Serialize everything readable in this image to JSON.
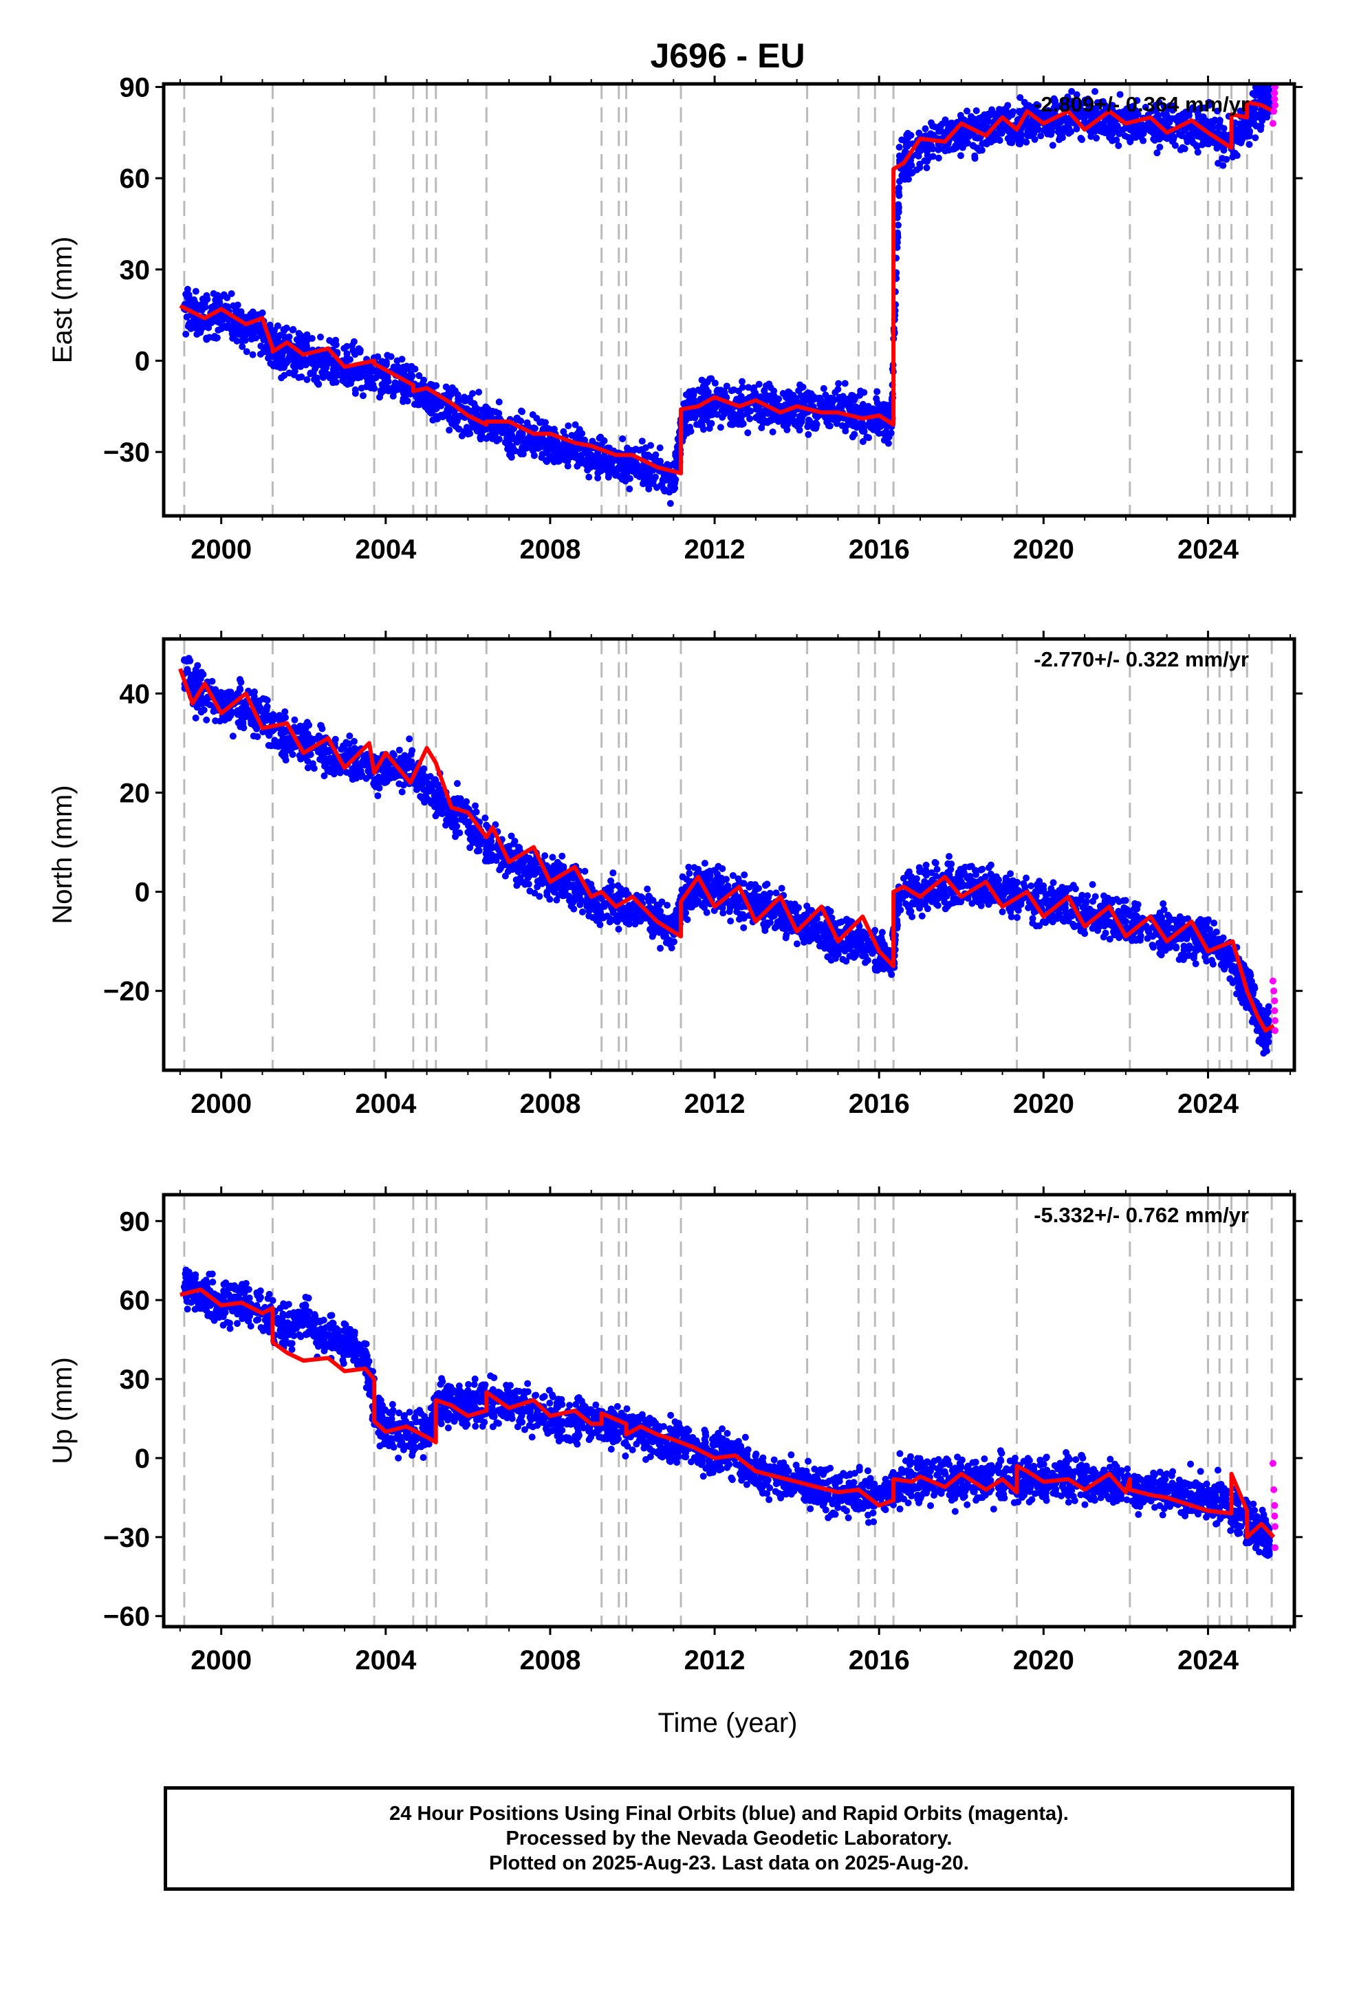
{
  "title": "J696 - EU",
  "time_axis": {
    "label": "Time (year)",
    "ticks": [
      2000,
      2004,
      2008,
      2012,
      2016,
      2020,
      2024
    ],
    "range": [
      1998.6,
      2026.1
    ]
  },
  "event_lines": [
    1999.1,
    2001.25,
    2003.72,
    2004.67,
    2005.0,
    2005.22,
    2006.45,
    2009.25,
    2009.67,
    2009.85,
    2011.18,
    2014.25,
    2015.5,
    2015.9,
    2016.35,
    2019.35,
    2022.1,
    2024.0,
    2024.28,
    2024.57,
    2024.95,
    2025.55
  ],
  "colors": {
    "final_orbits": "#0000ff",
    "rapid_orbits": "#ff00ff",
    "model": "#ff0000",
    "event_lines": "#bbbbbb",
    "frame": "#000000"
  },
  "chart_data": [
    {
      "type": "scatter",
      "panel": "east",
      "ylabel": "East (mm)",
      "ylim": [
        -51,
        91
      ],
      "yticks": [
        90,
        60,
        30,
        0,
        -30
      ],
      "rate": "-2.809+/- 0.364 mm/yr",
      "series": [
        {
          "name": "Final Orbits",
          "role": "final",
          "x": [
            1999.1,
            1999.5,
            2000.0,
            2000.5,
            2001.0,
            2001.3,
            2001.6,
            2002.0,
            2002.5,
            2003.0,
            2003.5,
            2004.0,
            2004.5,
            2005.0,
            2005.5,
            2006.0,
            2006.5,
            2007.0,
            2007.5,
            2008.0,
            2008.5,
            2009.0,
            2009.5,
            2010.0,
            2010.5,
            2011.0,
            2011.3,
            2011.7,
            2012.0,
            2012.5,
            2013.0,
            2013.5,
            2014.0,
            2014.5,
            2015.0,
            2015.5,
            2016.0,
            2016.3,
            2016.5,
            2017.0,
            2017.5,
            2018.0,
            2018.5,
            2019.0,
            2019.5,
            2020.0,
            2020.5,
            2021.0,
            2021.5,
            2022.0,
            2022.5,
            2023.0,
            2023.5,
            2024.0,
            2024.5,
            2025.0,
            2025.3,
            2025.5
          ],
          "y": [
            17,
            14,
            15,
            12,
            10,
            3,
            4,
            2,
            -1,
            -2,
            -4,
            -6,
            -8,
            -12,
            -16,
            -18,
            -21,
            -24,
            -25,
            -27,
            -28,
            -31,
            -33,
            -34,
            -36,
            -38,
            -16,
            -15,
            -14,
            -15,
            -14,
            -16,
            -15,
            -17,
            -16,
            -18,
            -19,
            -21,
            65,
            70,
            73,
            75,
            76,
            77,
            78,
            79,
            80,
            80,
            79,
            78,
            77,
            78,
            77,
            76,
            71,
            80,
            84,
            86
          ]
        },
        {
          "name": "Rapid Orbits",
          "role": "rapid",
          "x": [
            2025.58,
            2025.6,
            2025.62,
            2025.62,
            2025.63,
            2025.63
          ],
          "y": [
            78,
            82,
            86,
            88,
            90,
            84
          ]
        }
      ],
      "model": {
        "x": [
          1999.0,
          1999.6,
          2000.0,
          2000.6,
          2001.0,
          2001.25,
          2001.25,
          2001.6,
          2002.0,
          2002.6,
          2003.0,
          2003.72,
          2003.72,
          2004.0,
          2004.67,
          2004.67,
          2005.0,
          2005.6,
          2006.0,
          2006.45,
          2006.45,
          2007.0,
          2007.6,
          2008.0,
          2008.6,
          2009.0,
          2009.6,
          2010.0,
          2010.6,
          2011.18,
          2011.18,
          2011.6,
          2012.0,
          2012.6,
          2013.0,
          2013.6,
          2014.0,
          2014.6,
          2015.0,
          2015.6,
          2016.0,
          2016.35,
          2016.35,
          2016.6,
          2017.0,
          2017.6,
          2018.0,
          2018.6,
          2019.0,
          2019.35,
          2019.6,
          2020.0,
          2020.6,
          2021.0,
          2021.6,
          2022.0,
          2022.6,
          2023.0,
          2023.6,
          2024.0,
          2024.57,
          2024.57,
          2024.95,
          2024.95,
          2025.3,
          2025.6
        ],
        "y": [
          18,
          14,
          17,
          12,
          14,
          4,
          3,
          6,
          2,
          4,
          -2,
          0,
          -1,
          -3,
          -8,
          -10,
          -9,
          -14,
          -18,
          -21,
          -20,
          -20,
          -24,
          -24,
          -27,
          -28,
          -31,
          -31,
          -35,
          -37,
          -16,
          -15,
          -12,
          -15,
          -13,
          -17,
          -15,
          -17,
          -17,
          -19,
          -18,
          -21,
          63,
          65,
          73,
          72,
          78,
          74,
          80,
          76,
          82,
          78,
          82,
          76,
          82,
          78,
          80,
          75,
          79,
          75,
          70,
          81,
          80,
          85,
          84,
          82
        ]
      }
    },
    {
      "type": "scatter",
      "panel": "north",
      "ylabel": "North (mm)",
      "ylim": [
        -36,
        51
      ],
      "yticks": [
        40,
        20,
        0,
        -20
      ],
      "rate": "-2.770+/- 0.322 mm/yr",
      "series": [
        {
          "name": "Final Orbits",
          "role": "final",
          "x": [
            1999.1,
            1999.5,
            2000.0,
            2000.5,
            2001.0,
            2001.5,
            2002.0,
            2002.5,
            2003.0,
            2003.5,
            2004.0,
            2004.5,
            2005.0,
            2005.5,
            2006.0,
            2006.5,
            2007.0,
            2007.5,
            2008.0,
            2008.5,
            2009.0,
            2009.5,
            2010.0,
            2010.5,
            2011.0,
            2011.3,
            2011.7,
            2012.0,
            2012.5,
            2013.0,
            2013.5,
            2014.0,
            2014.5,
            2015.0,
            2015.5,
            2016.0,
            2016.3,
            2016.5,
            2017.0,
            2017.5,
            2018.0,
            2018.5,
            2019.0,
            2019.5,
            2020.0,
            2020.5,
            2021.0,
            2021.5,
            2022.0,
            2022.5,
            2023.0,
            2023.5,
            2024.0,
            2024.5,
            2025.0,
            2025.3,
            2025.5
          ],
          "y": [
            44,
            40,
            38,
            37,
            35,
            31,
            30,
            28,
            27,
            26,
            24,
            25,
            22,
            17,
            14,
            10,
            7,
            5,
            3,
            1,
            -1,
            -2,
            -3,
            -5,
            -8,
            -1,
            1,
            0,
            -1,
            -2,
            -4,
            -6,
            -8,
            -9,
            -10,
            -12,
            -14,
            0,
            0,
            1,
            2,
            1,
            0,
            -1,
            -2,
            -3,
            -4,
            -5,
            -6,
            -7,
            -8,
            -9,
            -10,
            -13,
            -20,
            -27,
            -28
          ]
        },
        {
          "name": "Rapid Orbits",
          "role": "rapid",
          "x": [
            2025.58,
            2025.6,
            2025.62,
            2025.62,
            2025.63,
            2025.63
          ],
          "y": [
            -18,
            -20,
            -22,
            -24,
            -26,
            -28
          ]
        }
      ],
      "model": {
        "x": [
          1999.0,
          1999.3,
          1999.6,
          2000.0,
          2000.6,
          2001.0,
          2001.6,
          2002.0,
          2002.6,
          2003.0,
          2003.6,
          2003.72,
          2004.0,
          2004.6,
          2005.0,
          2005.22,
          2005.6,
          2006.0,
          2006.45,
          2006.6,
          2007.0,
          2007.6,
          2008.0,
          2008.6,
          2009.0,
          2009.25,
          2009.6,
          2010.0,
          2010.6,
          2011.18,
          2011.18,
          2011.6,
          2012.0,
          2012.6,
          2013.0,
          2013.6,
          2014.0,
          2014.6,
          2015.0,
          2015.6,
          2016.0,
          2016.35,
          2016.35,
          2016.6,
          2017.0,
          2017.6,
          2018.0,
          2018.6,
          2019.0,
          2019.6,
          2020.0,
          2020.6,
          2021.0,
          2021.6,
          2022.0,
          2022.6,
          2023.0,
          2023.6,
          2024.0,
          2024.6,
          2024.95,
          2025.2,
          2025.4,
          2025.6
        ],
        "y": [
          45,
          38,
          42,
          36,
          40,
          33,
          34,
          28,
          31,
          25,
          30,
          24,
          28,
          22,
          29,
          26,
          17,
          16,
          11,
          13,
          6,
          9,
          2,
          5,
          -1,
          0,
          -3,
          -1,
          -6,
          -9,
          -2,
          3,
          -3,
          1,
          -6,
          -1,
          -8,
          -3,
          -10,
          -5,
          -12,
          -15,
          0,
          1,
          -1,
          3,
          -1,
          2,
          -3,
          0,
          -5,
          -1,
          -7,
          -3,
          -9,
          -5,
          -10,
          -6,
          -12,
          -10,
          -20,
          -25,
          -28,
          -27
        ]
      }
    },
    {
      "type": "scatter",
      "panel": "up",
      "ylabel": "Up (mm)",
      "ylim": [
        -64,
        100
      ],
      "yticks": [
        90,
        60,
        30,
        0,
        -30,
        -60
      ],
      "rate": "-5.332+/- 0.762 mm/yr",
      "series": [
        {
          "name": "Final Orbits",
          "role": "final",
          "x": [
            1999.1,
            1999.5,
            2000.0,
            2000.5,
            2001.0,
            2001.5,
            2002.0,
            2002.5,
            2003.0,
            2003.5,
            2003.8,
            2004.0,
            2004.5,
            2005.0,
            2005.3,
            2005.7,
            2006.0,
            2006.5,
            2007.0,
            2007.5,
            2008.0,
            2008.5,
            2009.0,
            2009.5,
            2010.0,
            2010.5,
            2011.0,
            2011.5,
            2012.0,
            2012.5,
            2013.0,
            2013.5,
            2014.0,
            2014.5,
            2015.0,
            2015.5,
            2016.0,
            2016.5,
            2017.0,
            2017.5,
            2018.0,
            2018.5,
            2019.0,
            2019.5,
            2020.0,
            2020.5,
            2021.0,
            2021.5,
            2022.0,
            2022.5,
            2023.0,
            2023.5,
            2024.0,
            2024.5,
            2025.0,
            2025.3,
            2025.5
          ],
          "y": [
            65,
            62,
            58,
            60,
            55,
            50,
            52,
            48,
            45,
            38,
            14,
            12,
            10,
            9,
            22,
            20,
            18,
            22,
            20,
            18,
            16,
            14,
            14,
            12,
            11,
            8,
            6,
            4,
            2,
            0,
            -5,
            -8,
            -10,
            -11,
            -13,
            -14,
            -15,
            -9,
            -8,
            -8,
            -9,
            -8,
            -8,
            -9,
            -8,
            -8,
            -9,
            -9,
            -10,
            -12,
            -13,
            -14,
            -15,
            -18,
            -25,
            -28,
            -30
          ]
        },
        {
          "name": "Rapid Orbits",
          "role": "rapid",
          "x": [
            2025.58,
            2025.6,
            2025.62,
            2025.62,
            2025.63,
            2025.63
          ],
          "y": [
            -2,
            -12,
            -18,
            -22,
            -26,
            -34
          ]
        }
      ],
      "model": {
        "x": [
          1999.0,
          1999.5,
          2000.0,
          2000.5,
          2001.0,
          2001.25,
          2001.25,
          2001.6,
          2002.0,
          2002.6,
          2003.0,
          2003.5,
          2003.72,
          2003.72,
          2004.0,
          2004.5,
          2005.0,
          2005.22,
          2005.22,
          2005.6,
          2006.0,
          2006.45,
          2006.45,
          2007.0,
          2007.6,
          2008.0,
          2008.6,
          2009.0,
          2009.25,
          2009.25,
          2009.85,
          2009.85,
          2010.2,
          2010.6,
          2011.0,
          2011.5,
          2012.0,
          2012.5,
          2013.0,
          2013.5,
          2014.0,
          2014.5,
          2015.0,
          2015.5,
          2016.0,
          2016.35,
          2016.35,
          2016.8,
          2017.0,
          2017.6,
          2018.0,
          2018.6,
          2019.0,
          2019.35,
          2019.35,
          2019.6,
          2020.0,
          2020.6,
          2021.0,
          2021.6,
          2022.0,
          2022.1,
          2022.1,
          2022.6,
          2023.0,
          2023.6,
          2024.0,
          2024.57,
          2024.57,
          2024.95,
          2024.95,
          2025.3,
          2025.6
        ],
        "y": [
          62,
          64,
          58,
          59,
          55,
          57,
          44,
          40,
          37,
          38,
          33,
          34,
          30,
          14,
          10,
          12,
          8,
          6,
          22,
          20,
          16,
          18,
          25,
          19,
          22,
          16,
          18,
          13,
          13,
          17,
          13,
          9,
          12,
          9,
          7,
          4,
          0,
          1,
          -5,
          -7,
          -9,
          -11,
          -13,
          -12,
          -18,
          -16,
          -8,
          -9,
          -7,
          -11,
          -6,
          -12,
          -8,
          -13,
          -3,
          -5,
          -9,
          -8,
          -12,
          -6,
          -13,
          -8,
          -12,
          -14,
          -15,
          -18,
          -20,
          -21,
          -6,
          -20,
          -30,
          -25,
          -30
        ]
      }
    }
  ],
  "footer": {
    "line1": "24 Hour Positions Using Final Orbits (blue) and Rapid Orbits (magenta).",
    "line2": "Processed by the Nevada Geodetic Laboratory.",
    "line3": "Plotted on 2025-Aug-23. Last data on 2025-Aug-20."
  }
}
